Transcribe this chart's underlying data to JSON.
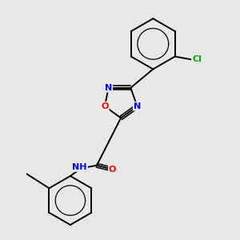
{
  "background_color": "#e8e8e8",
  "bond_color": "#000000",
  "atom_colors": {
    "N": "#0000ff",
    "O": "#ff0000",
    "Cl": "#00aa00",
    "H": "#222222",
    "C": "#000000"
  }
}
